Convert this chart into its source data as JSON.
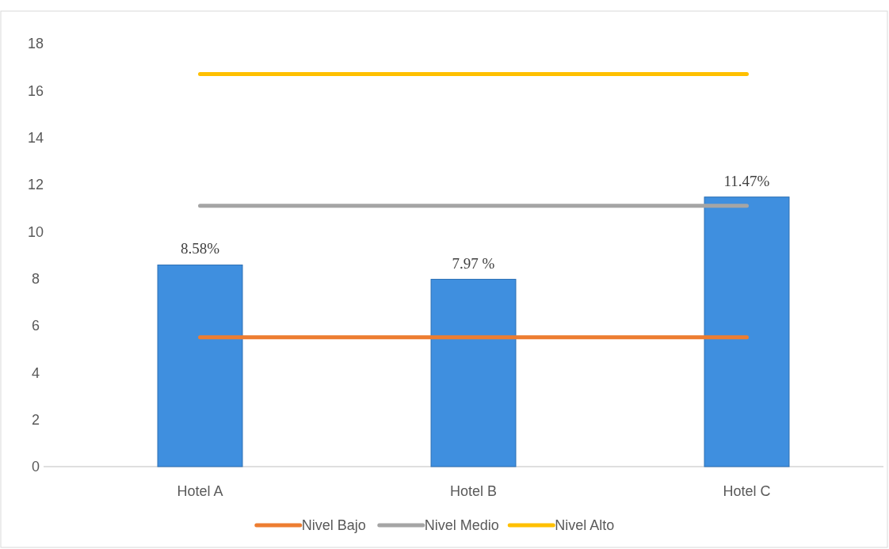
{
  "chart_data": {
    "type": "bar",
    "categories": [
      "Hotel A",
      "Hotel B",
      "Hotel C"
    ],
    "series": [
      {
        "color": "#3f8fdf",
        "values": [
          8.58,
          7.97,
          11.47
        ],
        "value_labels": [
          "8.58%",
          "7.97 %",
          "11.47%"
        ]
      },
      {
        "type": "line",
        "name": "Nivel Bajo",
        "color": "#ed7d31",
        "values": [
          5.5,
          5.5,
          5.5
        ]
      },
      {
        "type": "line",
        "name": "Nivel Medio",
        "color": "#a5a5a5",
        "values": [
          11.1,
          11.1,
          11.1
        ]
      },
      {
        "type": "line",
        "name": "Nivel Alto",
        "color": "#ffc000",
        "values": [
          16.7,
          16.7,
          16.7
        ]
      }
    ],
    "ylim": [
      0,
      18
    ],
    "yticks": [
      0,
      2,
      4,
      6,
      8,
      10,
      12,
      14,
      16,
      18
    ],
    "legend": "bottom",
    "marker": "none",
    "line_style": "solid"
  }
}
